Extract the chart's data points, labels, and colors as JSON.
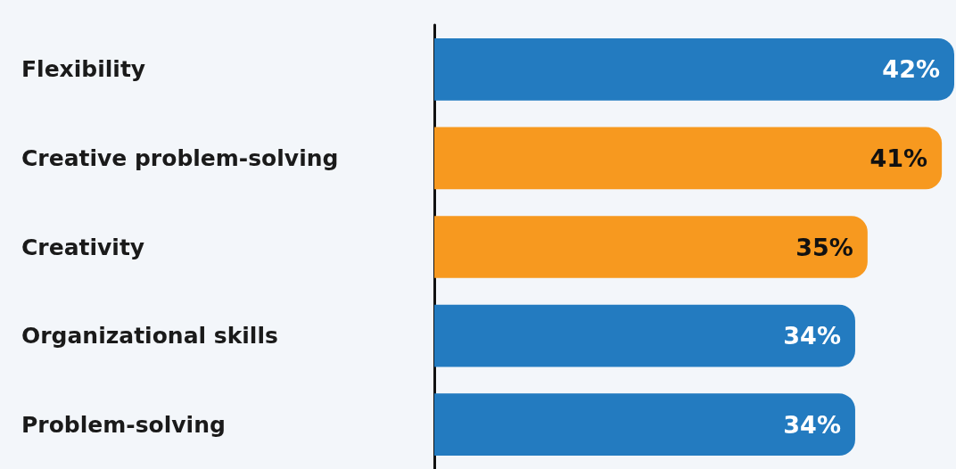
{
  "chart_data": {
    "type": "bar",
    "orientation": "horizontal",
    "categories": [
      "Flexibility",
      "Creative problem-solving",
      "Creativity",
      "Organizational skills",
      "Problem-solving"
    ],
    "values": [
      42,
      41,
      35,
      34,
      34
    ],
    "colors": [
      "#237bc0",
      "#f7991f",
      "#f7991f",
      "#237bc0",
      "#237bc0"
    ],
    "value_labels": [
      "42%",
      "41%",
      "35%",
      "34%",
      "34%"
    ]
  }
}
